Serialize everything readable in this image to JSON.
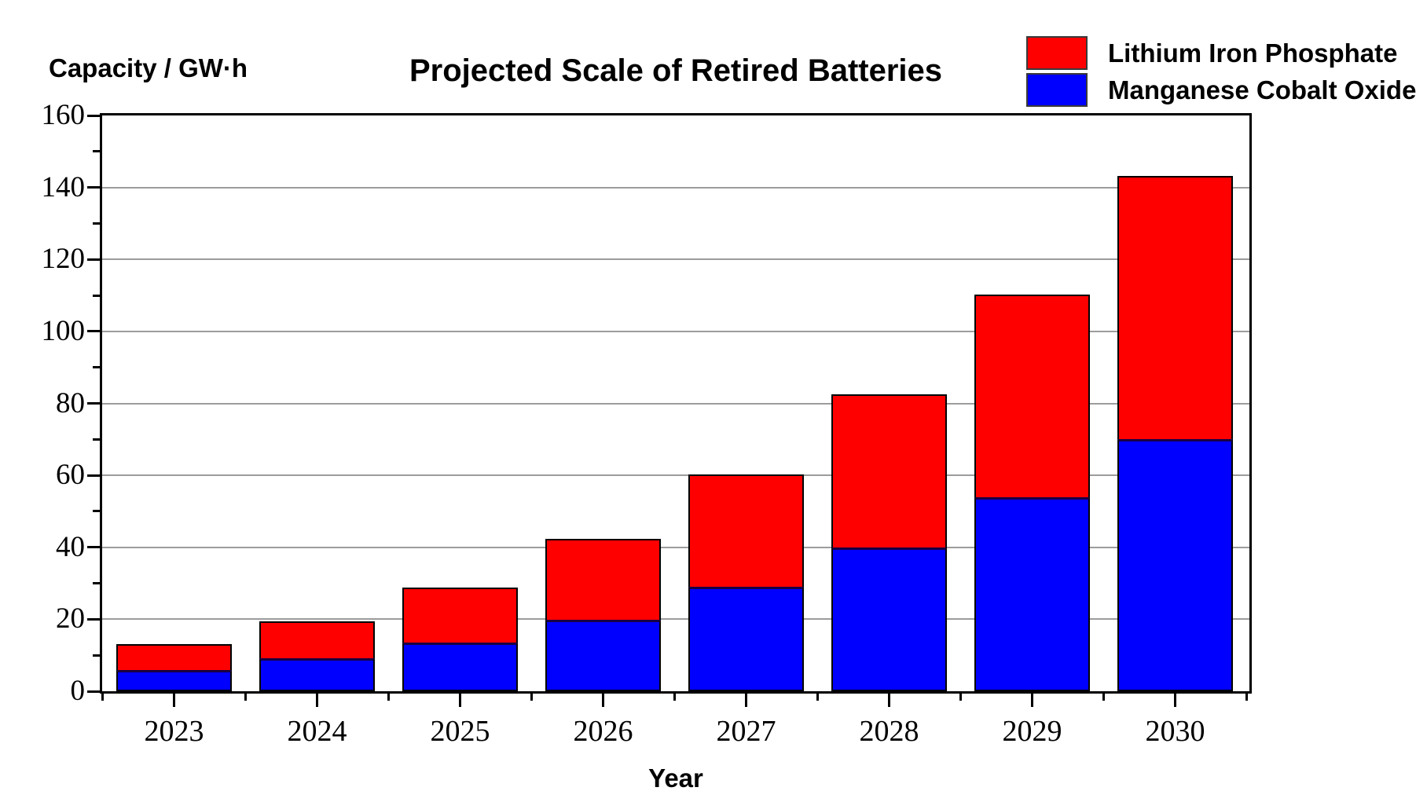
{
  "page": {
    "background": "#ffffff"
  },
  "chart_data": {
    "type": "bar",
    "stacked": true,
    "title": "Projected Scale of Retired Batteries",
    "y_axis_title": "Capacity / GW·h",
    "x_axis_title": "Year",
    "categories": [
      "2023",
      "2024",
      "2025",
      "2026",
      "2027",
      "2028",
      "2029",
      "2030"
    ],
    "series": [
      {
        "name": "Manganese Cobalt Oxide",
        "color": "#0000ff",
        "values": [
          6.0,
          9.2,
          13.6,
          19.8,
          29.0,
          40.0,
          54.0,
          70.0
        ]
      },
      {
        "name": "Lithium Iron Phosphate",
        "color": "#ff0000",
        "values": [
          7.2,
          10.3,
          15.2,
          22.5,
          31.3,
          42.5,
          56.3,
          73.3
        ]
      }
    ],
    "stack_totals": [
      13.2,
      19.5,
      28.8,
      42.3,
      60.3,
      82.5,
      110.3,
      143.3
    ],
    "ylim": [
      0,
      160
    ],
    "y_major_tick_step": 20,
    "y_minor_tick_step": 10,
    "y_tick_labels": [
      "0",
      "20",
      "40",
      "60",
      "80",
      "100",
      "120",
      "140",
      "160"
    ],
    "grid": "horizontal gridlines at 20-unit steps, gray",
    "legend_position": "top-right",
    "legend": [
      {
        "label": "Lithium Iron Phosphate",
        "color": "#ff0000"
      },
      {
        "label": "Manganese Cobalt Oxide",
        "color": "#0000ff"
      }
    ]
  }
}
